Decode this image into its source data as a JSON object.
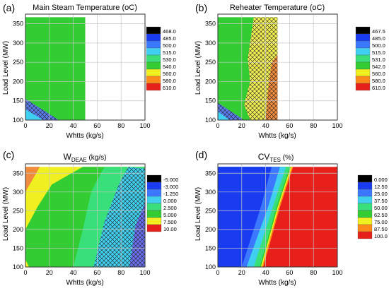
{
  "chart_data": [
    {
      "panel_label": "(a)",
      "type": "heatmap",
      "title": "Main Steam Temperature (oC)",
      "xlabel": "Whtts (kg/s)",
      "ylabel": "Load Level (MW)",
      "xlim": [
        0,
        100
      ],
      "ylim": [
        100,
        375
      ],
      "xticks": [
        "0",
        "20",
        "40",
        "60",
        "80",
        "100"
      ],
      "yticks": [
        "100",
        "150",
        "200",
        "250",
        "300",
        "350"
      ],
      "legend": {
        "labels": [
          "468.0",
          "485.0",
          "500.0",
          "515.0",
          "530.0",
          "540.0",
          "560.0",
          "580.0",
          "610.0"
        ],
        "colors": [
          "#000000",
          "#1a3cf0",
          "#3c78ff",
          "#3fd0f0",
          "#39e07a",
          "#33cc33",
          "#f0f020",
          "#ff8c1a",
          "#e8201c"
        ]
      },
      "regions": [
        {
          "color": "#33cc33",
          "hatch": false,
          "polygon": [
            [
              0,
              100
            ],
            [
              50,
              100
            ],
            [
              50,
              367
            ],
            [
              0,
              367
            ]
          ]
        },
        {
          "color": "#5a7cf0",
          "hatch": true,
          "polygon": [
            [
              0,
              100
            ],
            [
              28,
              100
            ],
            [
              0,
              155
            ]
          ]
        },
        {
          "color": "#3fd0f0",
          "hatch": false,
          "polygon": [
            [
              0,
              100
            ],
            [
              15,
              100
            ],
            [
              0,
              128
            ]
          ]
        }
      ]
    },
    {
      "panel_label": "(b)",
      "type": "heatmap",
      "title": "Reheater Temperature (oC)",
      "xlabel": "Whtts (kg/s)",
      "ylabel": "Load Level (MW)",
      "xlim": [
        0,
        100
      ],
      "ylim": [
        100,
        375
      ],
      "xticks": [
        "0",
        "20",
        "40",
        "60",
        "80",
        "100"
      ],
      "yticks": [
        "100",
        "150",
        "200",
        "250",
        "300",
        "350"
      ],
      "legend": {
        "labels": [
          "467.5",
          "485.0",
          "500.0",
          "515.0",
          "531.0",
          "542.0",
          "560.0",
          "580.0",
          "610.0"
        ],
        "colors": [
          "#000000",
          "#1a3cf0",
          "#3c78ff",
          "#3fd0f0",
          "#39e07a",
          "#33cc33",
          "#f0f020",
          "#ff8c1a",
          "#e8201c"
        ]
      },
      "regions": [
        {
          "color": "#33cc33",
          "hatch": false,
          "polygon": [
            [
              0,
              100
            ],
            [
              50,
              100
            ],
            [
              50,
              367
            ],
            [
              0,
              367
            ]
          ]
        },
        {
          "color": "#f2ef55",
          "hatch": true,
          "polygon": [
            [
              27,
              100
            ],
            [
              50,
              100
            ],
            [
              50,
              367
            ],
            [
              30,
              367
            ],
            [
              25,
              260
            ],
            [
              27,
              200
            ],
            [
              22,
              140
            ]
          ]
        },
        {
          "color": "#f08a3c",
          "hatch": true,
          "polygon": [
            [
              40,
              100
            ],
            [
              50,
              100
            ],
            [
              50,
              270
            ],
            [
              45,
              250
            ],
            [
              42,
              180
            ]
          ]
        },
        {
          "color": "#5a7cf0",
          "hatch": true,
          "polygon": [
            [
              0,
              100
            ],
            [
              22,
              100
            ],
            [
              0,
              145
            ]
          ]
        },
        {
          "color": "#3fd0f0",
          "hatch": false,
          "polygon": [
            [
              0,
              100
            ],
            [
              10,
              100
            ],
            [
              0,
              122
            ]
          ]
        }
      ]
    },
    {
      "panel_label": "(c)",
      "type": "heatmap",
      "title": "W",
      "title_sub": "DEAE",
      "title_suffix": " (kg/s)",
      "xlabel": "Whtts (kg/s)",
      "ylabel": "Load Level (MW)",
      "xlim": [
        0,
        100
      ],
      "ylim": [
        100,
        375
      ],
      "xticks": [
        "0",
        "20",
        "40",
        "60",
        "80",
        "100"
      ],
      "yticks": [
        "100",
        "150",
        "200",
        "250",
        "300",
        "350"
      ],
      "legend": {
        "labels": [
          "-5.000",
          "-3.000",
          "-1.250",
          "0.000",
          "2.500",
          "5.000",
          "7.500",
          "10.00"
        ],
        "colors": [
          "#000000",
          "#1a3cf0",
          "#3c78ff",
          "#3fd0f0",
          "#39e07a",
          "#33cc33",
          "#f0f020",
          "#e8201c"
        ]
      },
      "regions": [
        {
          "color": "#f0f020",
          "hatch": false,
          "polygon": [
            [
              0,
              100
            ],
            [
              100,
              100
            ],
            [
              100,
              367
            ],
            [
              0,
              367
            ]
          ]
        },
        {
          "color": "#33cc33",
          "hatch": false,
          "polygon": [
            [
              3,
              100
            ],
            [
              100,
              100
            ],
            [
              100,
              367
            ],
            [
              48,
              367
            ],
            [
              22,
              320
            ],
            [
              10,
              260
            ],
            [
              0,
              200
            ],
            [
              0,
              120
            ]
          ]
        },
        {
          "color": "#39e07a",
          "hatch": false,
          "polygon": [
            [
              40,
              100
            ],
            [
              100,
              100
            ],
            [
              100,
              367
            ],
            [
              66,
              367
            ],
            [
              55,
              300
            ],
            [
              48,
              200
            ]
          ]
        },
        {
          "color": "#3fd0f0",
          "hatch": true,
          "polygon": [
            [
              57,
              100
            ],
            [
              100,
              100
            ],
            [
              100,
              362
            ],
            [
              86,
              367
            ],
            [
              78,
              320
            ],
            [
              66,
              220
            ]
          ]
        },
        {
          "color": "#6a6ff0",
          "hatch": true,
          "polygon": [
            [
              87,
              100
            ],
            [
              100,
              100
            ],
            [
              100,
              270
            ],
            [
              92,
              210
            ]
          ]
        },
        {
          "color": "#f08a3c",
          "hatch": false,
          "polygon": [
            [
              0,
              300
            ],
            [
              12,
              367
            ],
            [
              0,
              367
            ]
          ]
        }
      ]
    },
    {
      "panel_label": "(d)",
      "type": "heatmap",
      "title": "CV",
      "title_sub": "TES",
      "title_suffix": " (%)",
      "xlabel": "Whtts (kg/s)",
      "ylabel": "Load Level (MW)",
      "xlim": [
        0,
        100
      ],
      "ylim": [
        100,
        375
      ],
      "xticks": [
        "0",
        "20",
        "40",
        "60",
        "80",
        "100"
      ],
      "yticks": [
        "100",
        "150",
        "200",
        "250",
        "300",
        "350"
      ],
      "legend": {
        "labels": [
          "0.000",
          "12.50",
          "25.00",
          "37.50",
          "50.00",
          "62.50",
          "75.00",
          "87.50",
          "100.0"
        ],
        "colors": [
          "#000000",
          "#1a3cf0",
          "#3c78ff",
          "#3fd0f0",
          "#39e07a",
          "#33cc33",
          "#f0f020",
          "#ff8c1a",
          "#e8201c"
        ]
      },
      "regions": [
        {
          "color": "#e8201c",
          "hatch": false,
          "polygon": [
            [
              0,
              100
            ],
            [
              100,
              100
            ],
            [
              100,
              367
            ],
            [
              0,
              367
            ]
          ]
        },
        {
          "color": "#ff8c1a",
          "hatch": false,
          "polygon": [
            [
              0,
              100
            ],
            [
              38,
              100
            ],
            [
              45,
              180
            ],
            [
              52,
              260
            ],
            [
              63,
              367
            ],
            [
              0,
              367
            ]
          ]
        },
        {
          "color": "#f0f020",
          "hatch": false,
          "polygon": [
            [
              0,
              100
            ],
            [
              37,
              100
            ],
            [
              44,
              180
            ],
            [
              51,
              260
            ],
            [
              62,
              367
            ],
            [
              0,
              367
            ]
          ]
        },
        {
          "color": "#33cc33",
          "hatch": false,
          "polygon": [
            [
              0,
              100
            ],
            [
              36,
              100
            ],
            [
              43,
              180
            ],
            [
              50,
              260
            ],
            [
              61,
              367
            ],
            [
              0,
              367
            ]
          ]
        },
        {
          "color": "#39e07a",
          "hatch": false,
          "polygon": [
            [
              0,
              100
            ],
            [
              35,
              100
            ],
            [
              42,
              180
            ],
            [
              49,
              260
            ],
            [
              60,
              367
            ],
            [
              0,
              367
            ]
          ]
        },
        {
          "color": "#3fd0f0",
          "hatch": false,
          "polygon": [
            [
              0,
              100
            ],
            [
              30,
              100
            ],
            [
              38,
              180
            ],
            [
              46,
              260
            ],
            [
              57,
              367
            ],
            [
              0,
              367
            ]
          ]
        },
        {
          "color": "#3c78ff",
          "hatch": false,
          "polygon": [
            [
              0,
              100
            ],
            [
              24,
              100
            ],
            [
              33,
              180
            ],
            [
              42,
              260
            ],
            [
              52,
              367
            ],
            [
              0,
              367
            ]
          ]
        },
        {
          "color": "#1a3cf0",
          "hatch": false,
          "polygon": [
            [
              0,
              100
            ],
            [
              20,
              100
            ],
            [
              28,
              180
            ],
            [
              36,
              260
            ],
            [
              45,
              367
            ],
            [
              0,
              367
            ]
          ]
        }
      ]
    }
  ]
}
